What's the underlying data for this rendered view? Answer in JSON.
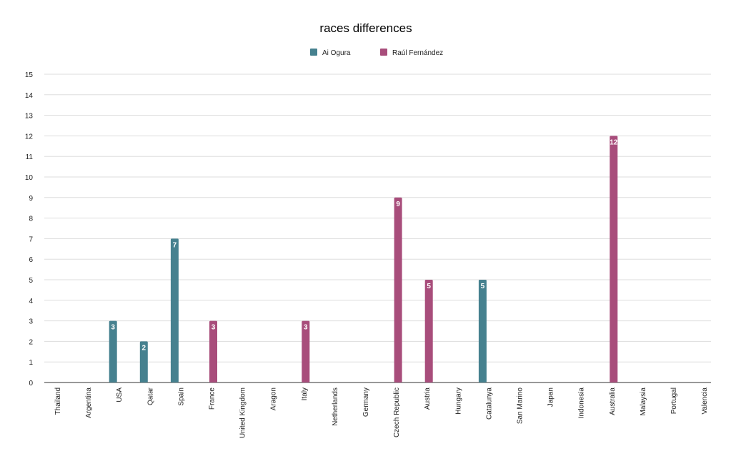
{
  "chart_data": {
    "type": "bar",
    "title": "races differences",
    "xlabel": "",
    "ylabel": "",
    "ylim": [
      0,
      15
    ],
    "yticks": [
      0,
      1,
      2,
      3,
      4,
      5,
      6,
      7,
      8,
      9,
      10,
      11,
      12,
      13,
      14,
      15
    ],
    "grid": true,
    "legend_position": "top",
    "categories": [
      "Thailand",
      "Argentina",
      "USA",
      "Qatar",
      "Spain",
      "France",
      "United Kingdom",
      "Aragon",
      "Italy",
      "Netherlands",
      "Germany",
      "Czech Republic",
      "Austria",
      "Hungary",
      "Catalunya",
      "San Marino",
      "Japan",
      "Indonesia",
      "Australia",
      "Malaysia",
      "Portugal",
      "Valencia"
    ],
    "series": [
      {
        "name": "Ai Ogura",
        "color": "#46818f",
        "values": [
          null,
          null,
          3,
          2,
          7,
          null,
          null,
          null,
          null,
          null,
          null,
          null,
          null,
          null,
          5,
          null,
          null,
          null,
          null,
          null,
          null,
          null
        ]
      },
      {
        "name": "Raúl Fernández",
        "color": "#a84d7b",
        "values": [
          null,
          null,
          null,
          null,
          null,
          3,
          null,
          null,
          3,
          null,
          null,
          9,
          5,
          null,
          null,
          null,
          null,
          null,
          12,
          null,
          null,
          null
        ]
      }
    ]
  }
}
